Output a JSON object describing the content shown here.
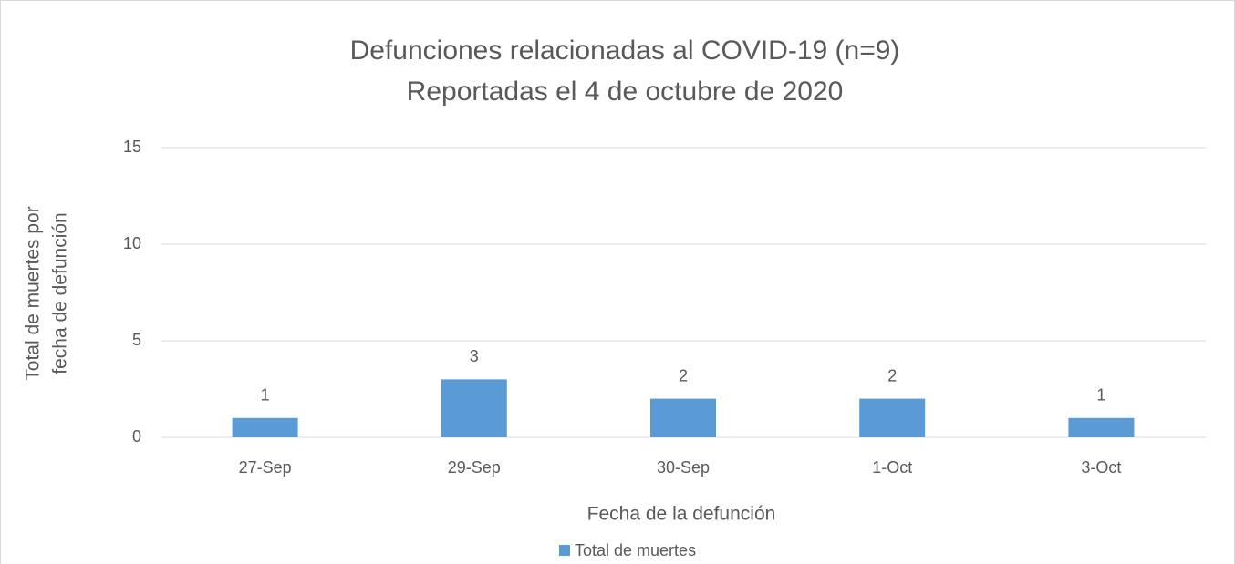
{
  "chart_data": {
    "type": "bar",
    "title": "Defunciones relacionadas al COVID-19 (n=9)",
    "subtitle": "Reportadas el 4 de octubre de 2020",
    "ylabel": [
      "Total de muertes  por",
      "fecha de defunción"
    ],
    "xlabel": "Fecha de la defunción",
    "categories": [
      "27-Sep",
      "29-Sep",
      "30-Sep",
      "1-Oct",
      "3-Oct"
    ],
    "series": [
      {
        "name": "Total de muertes",
        "color": "#5b9bd5",
        "values": [
          1,
          3,
          2,
          2,
          1
        ]
      }
    ],
    "ylim": [
      0,
      15
    ],
    "yticks": [
      0,
      5,
      10,
      15
    ],
    "grid": true,
    "legend": "bottom"
  }
}
